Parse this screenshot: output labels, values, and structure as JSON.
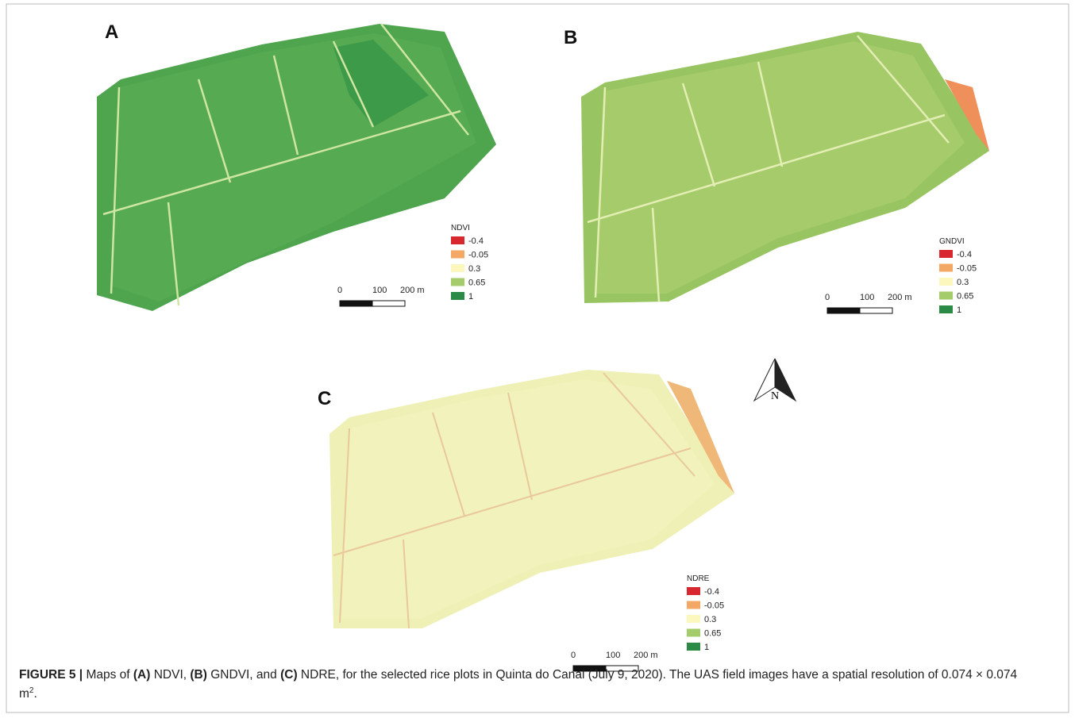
{
  "panels": [
    {
      "label": "A",
      "legend": {
        "title": "NDVI",
        "items": [
          {
            "label": "-0.4",
            "color": "#d7282f"
          },
          {
            "label": "-0.05",
            "color": "#f3a866"
          },
          {
            "label": "0.3",
            "color": "#fbf7bd"
          },
          {
            "label": "0.65",
            "color": "#a5cc6b"
          },
          {
            "label": "1",
            "color": "#2b8a45"
          }
        ]
      },
      "scale": [
        "0",
        "100",
        "200 m"
      ]
    },
    {
      "label": "B",
      "legend": {
        "title": "GNDVI",
        "items": [
          {
            "label": "-0.4",
            "color": "#d7282f"
          },
          {
            "label": "-0.05",
            "color": "#f3a866"
          },
          {
            "label": "0.3",
            "color": "#fbf7bd"
          },
          {
            "label": "0.65",
            "color": "#a5cc6b"
          },
          {
            "label": "1",
            "color": "#2b8a45"
          }
        ]
      },
      "scale": [
        "0",
        "100",
        "200 m"
      ]
    },
    {
      "label": "C",
      "legend": {
        "title": "NDRE",
        "items": [
          {
            "label": "-0.4",
            "color": "#d7282f"
          },
          {
            "label": "-0.05",
            "color": "#f3a866"
          },
          {
            "label": "0.3",
            "color": "#fbf7bd"
          },
          {
            "label": "0.65",
            "color": "#a5cc6b"
          },
          {
            "label": "1",
            "color": "#2b8a45"
          }
        ]
      },
      "scale": [
        "0",
        "100",
        "200 m"
      ]
    }
  ],
  "north": "N",
  "caption": [
    {
      "text": "FIGURE 5 |",
      "style": "bold"
    },
    {
      "text": " Maps of ",
      "style": "normal"
    },
    {
      "text": "(A)",
      "style": "bold"
    },
    {
      "text": " NDVI, ",
      "style": "normal"
    },
    {
      "text": "(B)",
      "style": "bold"
    },
    {
      "text": " GNDVI, and ",
      "style": "normal"
    },
    {
      "text": "(C)",
      "style": "bold"
    },
    {
      "text": " NDRE, for the selected rice plots in Quinta do Canal (July 9, 2020). The UAS field images have a spatial resolution of 0.074 × 0.074 m",
      "style": "normal"
    },
    {
      "text": "2",
      "style": "sup"
    },
    {
      "text": ".",
      "style": "normal"
    }
  ]
}
